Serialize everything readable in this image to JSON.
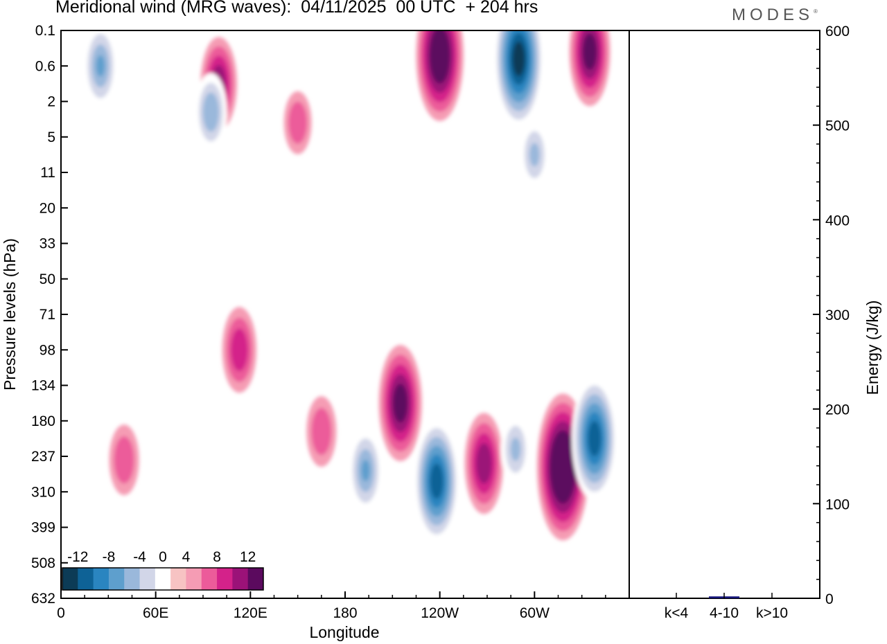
{
  "header": {
    "title": "Meridional wind (MRG waves):  04/11/2025  00 UTC  + 204 hrs",
    "logo": "MODES",
    "logo_mark": "®"
  },
  "chart_data": [
    {
      "type": "heatmap",
      "title": "Meridional wind (MRG waves):  04/11/2025  00 UTC  + 204 hrs",
      "xlabel": "Longitude",
      "ylabel": "Pressure levels (hPa)",
      "x_ticks": [
        "0",
        "60E",
        "120E",
        "180",
        "120W",
        "60W"
      ],
      "x_tick_degrees": [
        0,
        60,
        120,
        180,
        240,
        300
      ],
      "x_range": [
        0,
        360
      ],
      "y_ticks": [
        "0.1",
        "0.6",
        "2",
        "5",
        "11",
        "20",
        "33",
        "50",
        "71",
        "98",
        "134",
        "180",
        "237",
        "310",
        "399",
        "508",
        "632"
      ],
      "colorbar": {
        "tick_labels": [
          "-12",
          "-8",
          "-4",
          "0",
          "4",
          "8",
          "12"
        ],
        "levels": [
          -14,
          -12,
          -10,
          -8,
          -6,
          -4,
          -2,
          2,
          4,
          6,
          8,
          10,
          12,
          14
        ],
        "colors": [
          "#0c3b56",
          "#0e6296",
          "#2a85c0",
          "#5e9fcd",
          "#9ab8db",
          "#d2d6e8",
          "#ffffff",
          "#f7c3c3",
          "#f59cb4",
          "#ec5b9a",
          "#d4228a",
          "#9b1278",
          "#5b0a5e"
        ]
      },
      "features": [
        {
          "lon": 25,
          "level": 1.0,
          "value": -8
        },
        {
          "lon": 100,
          "level": 1.5,
          "value": 9
        },
        {
          "lon": 95,
          "level": 2.3,
          "value": -7
        },
        {
          "lon": 150,
          "level": 2.6,
          "value": 5
        },
        {
          "lon": 240,
          "level": 0.7,
          "value": 14
        },
        {
          "lon": 290,
          "level": 0.8,
          "value": -15
        },
        {
          "lon": 335,
          "level": 0.6,
          "value": 11
        },
        {
          "lon": 300,
          "level": 3.5,
          "value": -6
        },
        {
          "lon": 113,
          "level": 9.0,
          "value": 8
        },
        {
          "lon": 215,
          "level": 10.5,
          "value": 12
        },
        {
          "lon": 238,
          "level": 12.7,
          "value": -13
        },
        {
          "lon": 268,
          "level": 12.2,
          "value": 10
        },
        {
          "lon": 288,
          "level": 11.8,
          "value": -6
        },
        {
          "lon": 318,
          "level": 12.3,
          "value": 16
        },
        {
          "lon": 338,
          "level": 11.5,
          "value": -13
        },
        {
          "lon": 40,
          "level": 12.1,
          "value": 6
        },
        {
          "lon": 165,
          "level": 11.3,
          "value": 6
        },
        {
          "lon": 193,
          "level": 12.4,
          "value": -8
        }
      ]
    },
    {
      "type": "bar",
      "categories": [
        "k<4",
        "4-10",
        "k>10"
      ],
      "values": [
        0,
        2,
        0
      ],
      "ylabel": "Energy (J/kg)",
      "ylim": [
        0,
        600
      ],
      "y_ticks": [
        "0",
        "100",
        "200",
        "300",
        "400",
        "500",
        "600"
      ],
      "bar_color": "#141478"
    }
  ]
}
